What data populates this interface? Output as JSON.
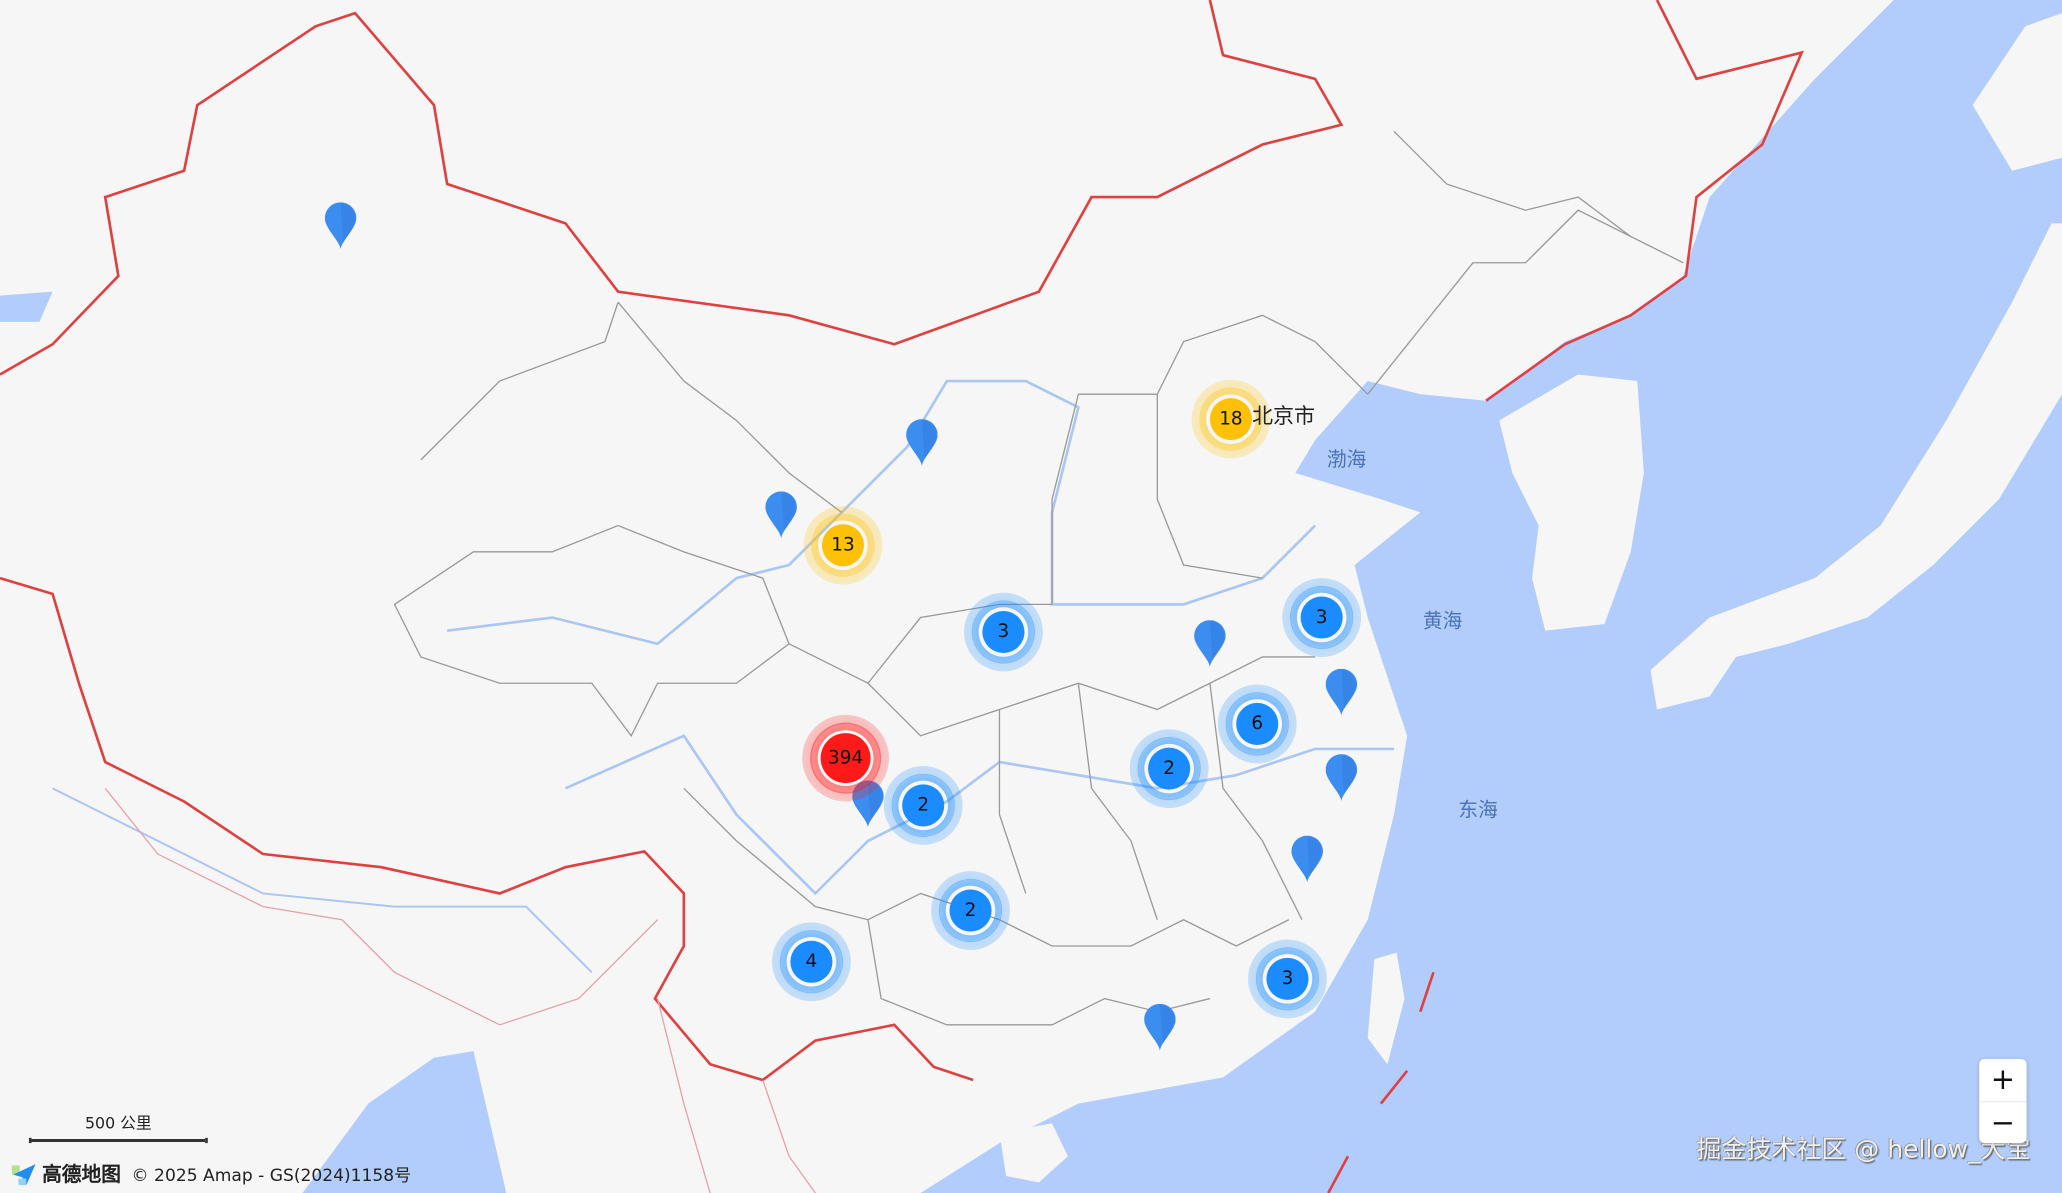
{
  "map": {
    "city_labels": [
      {
        "text": "北京市"
      }
    ],
    "sea_labels": [
      {
        "text": "渤海"
      },
      {
        "text": "黄海"
      },
      {
        "text": "东海"
      }
    ],
    "clusters": [
      {
        "count": "18",
        "level": "medium"
      },
      {
        "count": "13",
        "level": "medium"
      },
      {
        "count": "394",
        "level": "high"
      },
      {
        "count": "3",
        "level": "low"
      },
      {
        "count": "3",
        "level": "low"
      },
      {
        "count": "6",
        "level": "low"
      },
      {
        "count": "2",
        "level": "low"
      },
      {
        "count": "2",
        "level": "low"
      },
      {
        "count": "2",
        "level": "low"
      },
      {
        "count": "4",
        "level": "low"
      },
      {
        "count": "3",
        "level": "low"
      }
    ],
    "single_markers": 9,
    "colors": {
      "low": "#1a8cff",
      "medium": "#ffc107",
      "high": "#ff1a1a",
      "sea": "#b2cdfb",
      "land": "#f6f6f6",
      "border": "#e04040",
      "marker": "#3c8df0"
    }
  },
  "scale_bar": {
    "label": "500 公里"
  },
  "footer": {
    "logo": "高德地图",
    "copyright": "© 2025 Amap - GS(2024)1158号"
  },
  "watermark": "掘金技术社区 @ hellow_大宝",
  "zoom_controls": {
    "zoom_in": "+",
    "zoom_out": "−"
  }
}
